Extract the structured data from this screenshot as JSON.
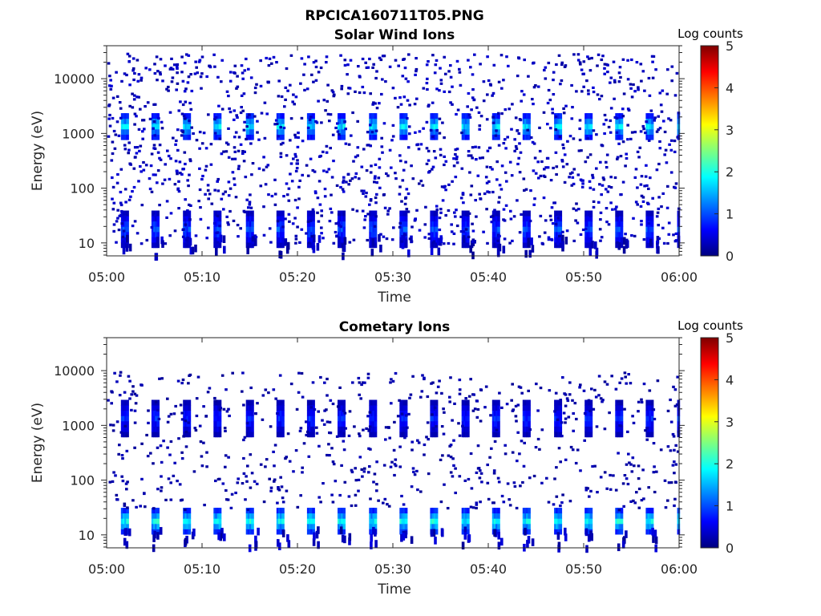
{
  "figure": {
    "title": "RPCICA160711T05.PNG"
  },
  "colormap": {
    "name": "jet",
    "stops": [
      "#00007f",
      "#0000ff",
      "#007fff",
      "#00ffff",
      "#7fff7f",
      "#ffff00",
      "#ff7f00",
      "#ff0000",
      "#7f0000"
    ]
  },
  "chart_data": [
    {
      "type": "heatmap",
      "title": "Solar Wind Ions",
      "xlabel": "Time",
      "ylabel": "Energy (eV)",
      "y_scale": "log",
      "x_range": [
        "05:00",
        "06:00"
      ],
      "y_range_ev": [
        5.8,
        40000
      ],
      "x_ticks": [
        "05:00",
        "05:10",
        "05:20",
        "05:30",
        "05:40",
        "05:50",
        "06:00"
      ],
      "y_ticks": [
        "10",
        "100",
        "1000",
        "10000"
      ],
      "colorbar": {
        "label": "Log counts",
        "min": 0,
        "max": 5,
        "ticks": [
          "0",
          "1",
          "2",
          "3",
          "4",
          "5"
        ]
      },
      "scan_period_min": 3.2,
      "scan_start_times": [
        "05:01.5",
        "05:04.7",
        "05:08.0",
        "05:11.2",
        "05:14.6",
        "05:17.8",
        "05:21.0",
        "05:24.2",
        "05:27.5",
        "05:30.7",
        "05:33.9",
        "05:37.2",
        "05:40.4",
        "05:43.6",
        "05:46.9",
        "05:50.1",
        "05:53.3",
        "05:56.5",
        "05:59.8"
      ],
      "features": [
        {
          "name": "solar wind peak",
          "energy_ev": 1500,
          "log_counts": 2.0
        },
        {
          "name": "low energy band",
          "energy_ev": 20,
          "log_counts": 1.2
        },
        {
          "name": "background noise",
          "energy_ev_range": [
            10,
            30000
          ],
          "log_counts": 0.3
        }
      ],
      "grid": false
    },
    {
      "type": "heatmap",
      "title": "Cometary Ions",
      "xlabel": "Time",
      "ylabel": "Energy (eV)",
      "y_scale": "log",
      "x_range": [
        "05:00",
        "06:00"
      ],
      "y_range_ev": [
        5.8,
        40000
      ],
      "x_ticks": [
        "05:00",
        "05:10",
        "05:20",
        "05:30",
        "05:40",
        "05:50",
        "06:00"
      ],
      "y_ticks": [
        "10",
        "100",
        "1000",
        "10000"
      ],
      "colorbar": {
        "label": "Log counts",
        "min": 0,
        "max": 5,
        "ticks": [
          "0",
          "1",
          "2",
          "3",
          "4",
          "5"
        ]
      },
      "scan_period_min": 3.2,
      "scan_start_times": [
        "05:01.5",
        "05:04.7",
        "05:08.0",
        "05:11.2",
        "05:14.6",
        "05:17.8",
        "05:21.0",
        "05:24.2",
        "05:27.5",
        "05:30.7",
        "05:33.9",
        "05:37.2",
        "05:40.4",
        "05:43.6",
        "05:46.9",
        "05:50.1",
        "05:53.3",
        "05:56.5",
        "05:59.8"
      ],
      "features": [
        {
          "name": "cometary ion band",
          "energy_ev": 20,
          "log_counts": 2.2
        },
        {
          "name": "high energy patch",
          "energy_ev": 1500,
          "log_counts": 1.0
        },
        {
          "name": "background noise",
          "energy_ev_range": [
            30,
            10000
          ],
          "log_counts": 0.2
        }
      ],
      "grid": false
    }
  ]
}
